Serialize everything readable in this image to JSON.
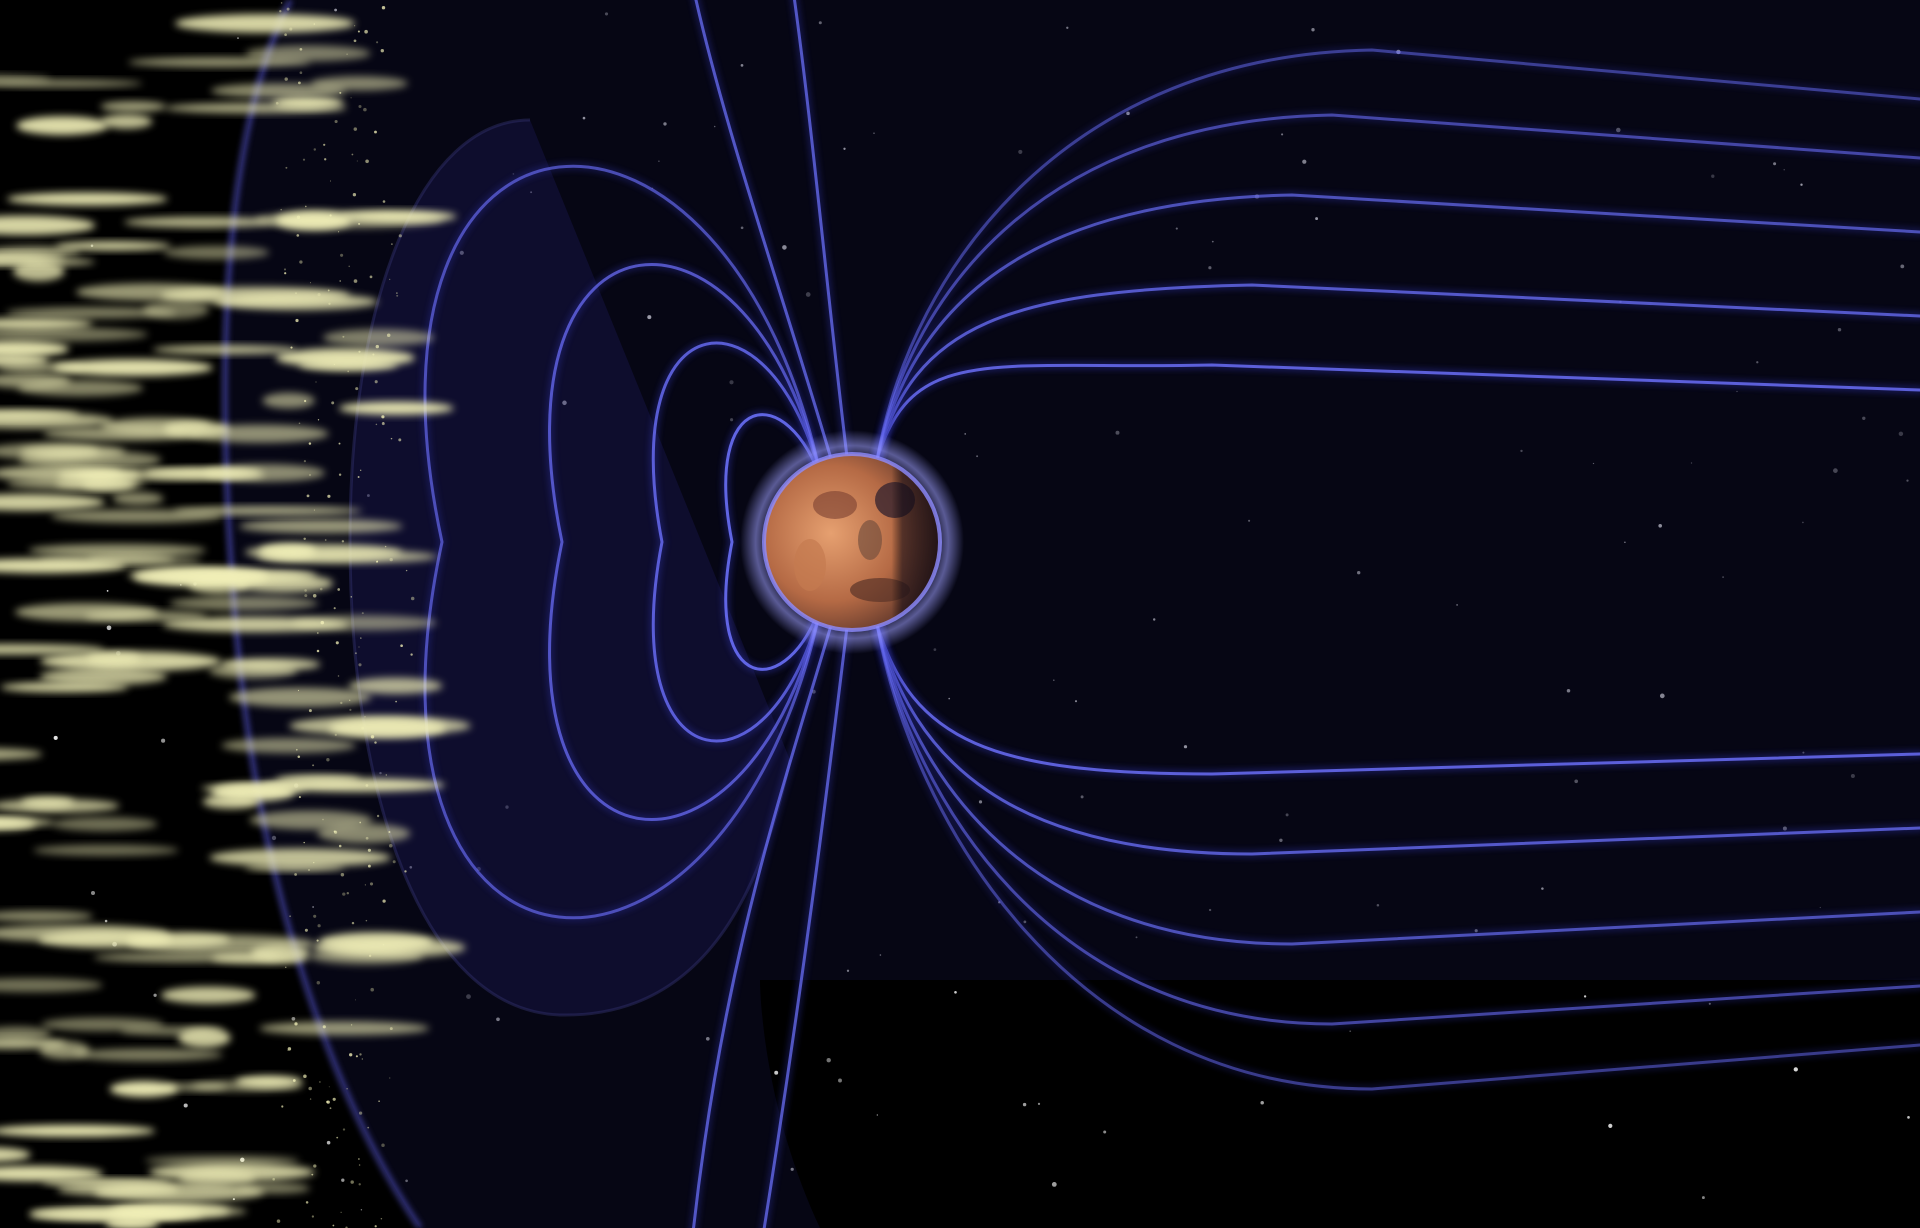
{
  "scene": {
    "subject": "planet-magnetosphere",
    "colors": {
      "background": "#000000",
      "field_line": "#6f73ff",
      "field_line_glow": "#2a2d9c",
      "sheath_fill": "#1a1750",
      "solar_wind": "#f2f0b8",
      "planet_light": "#d9895a",
      "planet_dark": "#2a1e22",
      "planet_rim": "#8f8cff",
      "star": "#ffffff"
    },
    "icons": {
      "planet": "planet-icon",
      "solar_wind": "solar-wind-particles",
      "stars": "star-field"
    }
  }
}
